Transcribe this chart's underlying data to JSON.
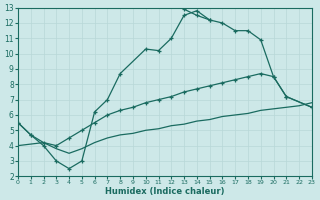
{
  "xlabel": "Humidex (Indice chaleur)",
  "bg_color": "#cde8e8",
  "grid_color": "#b8d8d8",
  "line_color": "#1a6b60",
  "xlim": [
    0,
    23
  ],
  "ylim": [
    2,
    13
  ],
  "xticks": [
    0,
    1,
    2,
    3,
    4,
    5,
    6,
    7,
    8,
    9,
    10,
    11,
    12,
    13,
    14,
    15,
    16,
    17,
    18,
    19,
    20,
    21,
    22,
    23
  ],
  "yticks": [
    2,
    3,
    4,
    5,
    6,
    7,
    8,
    9,
    10,
    11,
    12,
    13
  ],
  "line1_x": [
    0,
    1,
    2,
    3,
    4,
    5,
    6,
    7,
    8,
    10,
    11,
    12,
    13,
    14,
    15
  ],
  "line1_y": [
    5.5,
    4.7,
    4.0,
    3.0,
    2.5,
    3.0,
    6.2,
    7.0,
    8.7,
    10.3,
    10.2,
    11.0,
    12.5,
    12.8,
    12.2
  ],
  "line2_x": [
    13,
    14,
    15,
    16,
    17,
    18,
    19,
    20,
    21,
    23
  ],
  "line2_y": [
    12.9,
    12.5,
    12.2,
    12.0,
    11.5,
    11.5,
    10.9,
    8.5,
    7.2,
    6.5
  ],
  "line3_x": [
    0,
    1,
    2,
    3,
    4,
    5,
    6,
    7,
    8,
    9,
    10,
    11,
    12,
    13,
    14,
    15,
    16,
    17,
    18,
    19,
    20,
    21,
    23
  ],
  "line3_y": [
    5.5,
    4.7,
    4.2,
    4.0,
    4.5,
    5.0,
    5.5,
    6.0,
    6.3,
    6.5,
    6.8,
    7.0,
    7.2,
    7.5,
    7.7,
    7.9,
    8.1,
    8.3,
    8.5,
    8.7,
    8.5,
    7.2,
    6.5
  ],
  "line4_x": [
    0,
    1,
    2,
    3,
    4,
    5,
    6,
    7,
    8,
    9,
    10,
    11,
    12,
    13,
    14,
    15,
    16,
    17,
    18,
    19,
    20,
    21,
    22,
    23
  ],
  "line4_y": [
    4.0,
    4.1,
    4.2,
    3.8,
    3.5,
    3.8,
    4.2,
    4.5,
    4.7,
    4.8,
    5.0,
    5.1,
    5.3,
    5.4,
    5.6,
    5.7,
    5.9,
    6.0,
    6.1,
    6.3,
    6.4,
    6.5,
    6.6,
    6.8
  ]
}
